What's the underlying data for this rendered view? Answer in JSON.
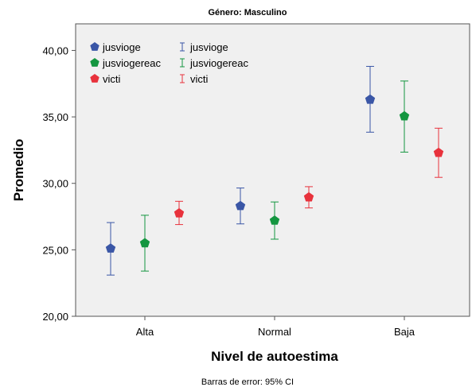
{
  "chart_data": {
    "type": "scatter",
    "title": "Género: Masculino",
    "xlabel": "Nivel de autoestima",
    "ylabel": "Promedio",
    "footnote": "Barras de error: 95% CI",
    "categories": [
      "Alta",
      "Normal",
      "Baja"
    ],
    "ylim": [
      20,
      42
    ],
    "yticks": [
      "20,00",
      "25,00",
      "30,00",
      "35,00",
      "40,00"
    ],
    "grid": false,
    "legend_position": "top-left",
    "legend": {
      "markers": [
        "jusvioge",
        "jusviogereac",
        "victi"
      ],
      "errorbars": [
        "jusvioge",
        "jusviogereac",
        "victi"
      ]
    },
    "series": [
      {
        "name": "jusvioge",
        "color": "#3a56a6",
        "values": [
          25.1,
          28.3,
          36.3
        ],
        "ci_lower": [
          23.1,
          26.95,
          33.85
        ],
        "ci_upper": [
          27.05,
          29.65,
          38.8
        ]
      },
      {
        "name": "jusviogereac",
        "color": "#149640",
        "values": [
          25.5,
          27.2,
          35.05
        ],
        "ci_lower": [
          23.4,
          25.8,
          32.35
        ],
        "ci_upper": [
          27.6,
          28.6,
          37.7
        ]
      },
      {
        "name": "victi",
        "color": "#e8323c",
        "values": [
          27.75,
          28.95,
          32.3
        ],
        "ci_lower": [
          26.9,
          28.15,
          30.45
        ],
        "ci_upper": [
          28.65,
          29.75,
          34.15
        ]
      }
    ]
  }
}
